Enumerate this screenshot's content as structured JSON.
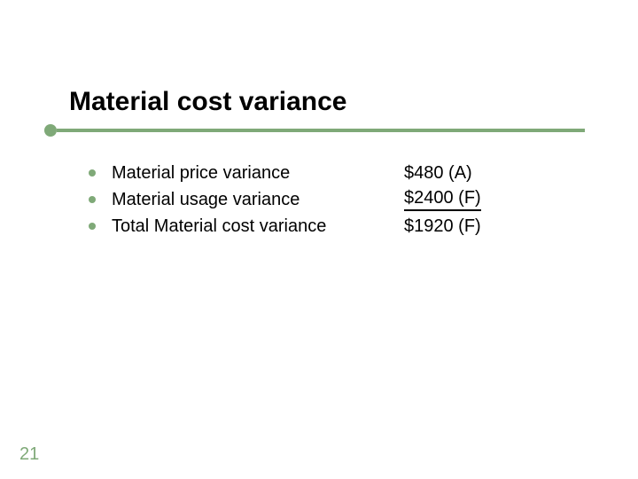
{
  "title": "Material cost variance",
  "accent_color": "#7fa978",
  "bullet_color": "#7fa978",
  "text_color": "#000000",
  "pagenum_color": "#7fa978",
  "title_fontsize": 30,
  "body_fontsize": 20,
  "items": [
    {
      "label": "Material price variance",
      "value": "$480 (A)",
      "underline": false
    },
    {
      "label": "Material usage variance",
      "value": "$2400 (F)",
      "underline": true
    },
    {
      "label": "Total Material cost variance",
      "value": "$1920 (F)",
      "underline": false
    }
  ],
  "page_number": "21"
}
